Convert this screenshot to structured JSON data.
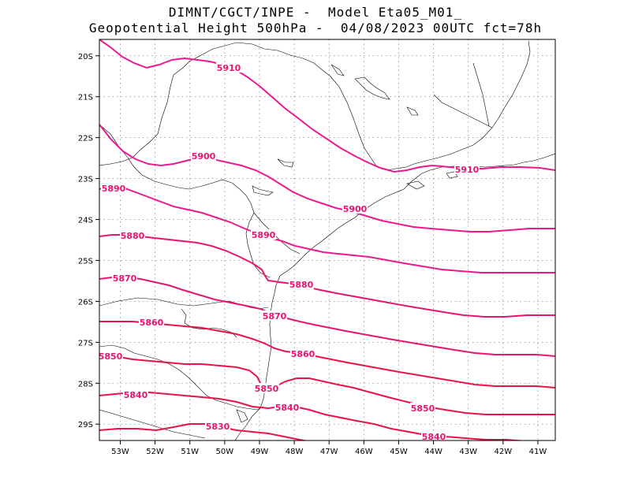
{
  "header": {
    "line1": "DIMNT/CGCT/INPE -  Model Eta05_M01_",
    "line2": "Geopotential Height 500hPa -  04/08/2023 00UTC fct=78h"
  },
  "colors": {
    "contour_upper": "#ec1a8e",
    "contour_lower": "#e8134a",
    "coast": "#000000",
    "grid": "#888888"
  },
  "map": {
    "lon_range": [
      -53.6,
      -40.5
    ],
    "lat_range": [
      -29.4,
      -19.6
    ],
    "lon_ticks": [
      "53W",
      "52W",
      "51W",
      "50W",
      "49W",
      "48W",
      "47W",
      "46W",
      "45W",
      "44W",
      "43W",
      "42W",
      "41W"
    ],
    "lat_ticks": [
      "20S",
      "21S",
      "22S",
      "23S",
      "24S",
      "25S",
      "26S",
      "27S",
      "28S",
      "29S"
    ]
  },
  "contours": [
    {
      "value": 5910,
      "labels": [
        "5910",
        "5910"
      ]
    },
    {
      "value": 5900,
      "labels": [
        "5900",
        "5900"
      ]
    },
    {
      "value": 5890,
      "labels": [
        "5890",
        "5890"
      ]
    },
    {
      "value": 5880,
      "labels": [
        "5880",
        "5880"
      ]
    },
    {
      "value": 5870,
      "labels": [
        "5870",
        "5870"
      ]
    },
    {
      "value": 5860,
      "labels": [
        "5860",
        "5860"
      ]
    },
    {
      "value": 5850,
      "labels": [
        "5850",
        "5850",
        "5850"
      ]
    },
    {
      "value": 5840,
      "labels": [
        "5840",
        "5840",
        "5840"
      ]
    },
    {
      "value": 5830,
      "labels": [
        "5830"
      ]
    }
  ]
}
